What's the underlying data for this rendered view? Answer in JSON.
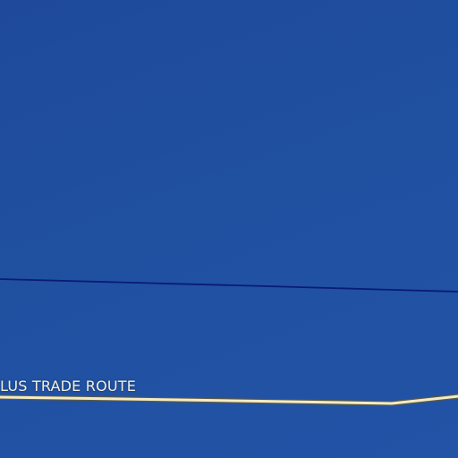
{
  "map": {
    "colors": {
      "water": "#2050a0",
      "boundary_line": "#0a1a7a",
      "trade_route": "#f3ecc4",
      "trade_route_outline": "#5a5a4a",
      "label_text": "#f4f0d8"
    },
    "features": {
      "boundary": {
        "type": "maritime-boundary-line"
      },
      "trade_route": {
        "type": "trade-route",
        "label": "LUS TRADE ROUTE"
      }
    }
  }
}
